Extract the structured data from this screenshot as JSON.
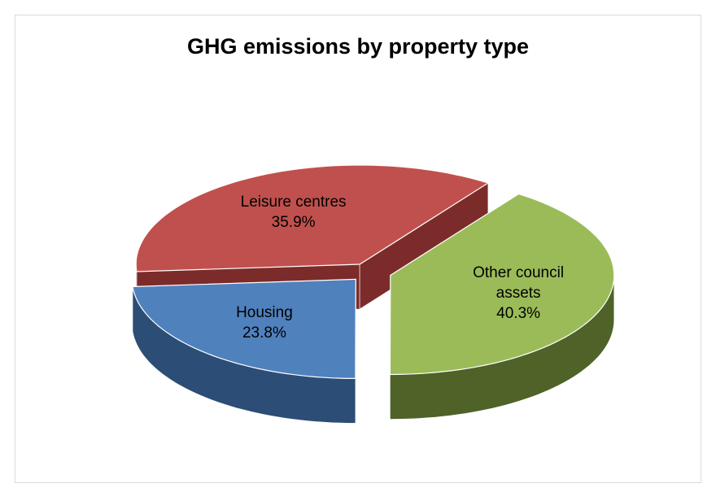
{
  "chart_data": {
    "type": "pie3d",
    "title": "GHG emissions by property type",
    "categories": [
      "Other council assets",
      "Housing",
      "Leisure centres"
    ],
    "values": [
      40.3,
      23.8,
      35.9
    ],
    "value_labels": [
      "40.3%",
      "23.8%",
      "35.9%"
    ],
    "colors": [
      "#9bbb59",
      "#4f81bd",
      "#c0504d"
    ],
    "side_colors": [
      "#4f6228",
      "#2c4d75",
      "#7b2c2a"
    ]
  }
}
